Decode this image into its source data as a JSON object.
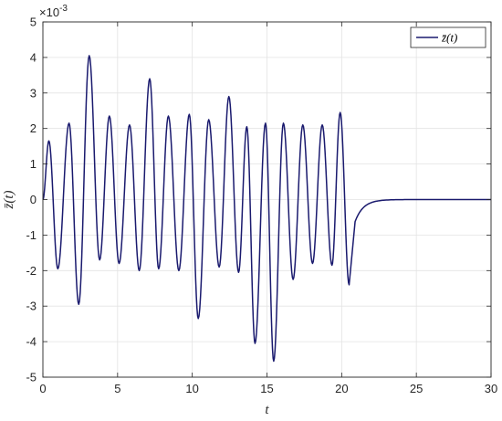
{
  "chart_data": {
    "type": "line",
    "title": "",
    "xlabel": "t",
    "ylabel": "z̄(t)",
    "xlim": [
      0,
      30
    ],
    "ylim": [
      -5,
      5
    ],
    "x_ticks": [
      "0",
      "5",
      "10",
      "15",
      "20",
      "25",
      "30"
    ],
    "y_ticks": [
      "-5",
      "-4",
      "-3",
      "-2",
      "-1",
      "0",
      "1",
      "2",
      "3",
      "4",
      "5"
    ],
    "y_exponent": "×10",
    "y_exponent_power": "-3",
    "grid": true,
    "legend_position": "top-right",
    "series": [
      {
        "name": "z̄(t)",
        "color": "#1a1a6e",
        "peaks": [
          [
            0,
            0.0
          ],
          [
            0.4,
            1.65
          ],
          [
            1.0,
            -1.95
          ],
          [
            1.75,
            2.15
          ],
          [
            2.4,
            -2.95
          ],
          [
            3.1,
            4.05
          ],
          [
            3.8,
            -1.7
          ],
          [
            4.45,
            2.35
          ],
          [
            5.1,
            -1.8
          ],
          [
            5.8,
            2.1
          ],
          [
            6.45,
            -2.0
          ],
          [
            7.15,
            3.4
          ],
          [
            7.75,
            -1.95
          ],
          [
            8.4,
            2.35
          ],
          [
            9.1,
            -2.0
          ],
          [
            9.8,
            2.4
          ],
          [
            10.4,
            -3.35
          ],
          [
            11.1,
            2.25
          ],
          [
            11.8,
            -1.9
          ],
          [
            12.45,
            2.9
          ],
          [
            13.1,
            -2.05
          ],
          [
            13.65,
            2.05
          ],
          [
            14.2,
            -4.05
          ],
          [
            14.9,
            2.15
          ],
          [
            15.45,
            -4.55
          ],
          [
            16.1,
            2.15
          ],
          [
            16.75,
            -2.25
          ],
          [
            17.4,
            2.1
          ],
          [
            18.05,
            -1.8
          ],
          [
            18.7,
            2.1
          ],
          [
            19.35,
            -1.85
          ],
          [
            19.9,
            2.45
          ],
          [
            20.5,
            -2.4
          ]
        ],
        "decay_start": [
          20.9,
          -0.62
        ],
        "decay_end_x": 30
      }
    ]
  }
}
